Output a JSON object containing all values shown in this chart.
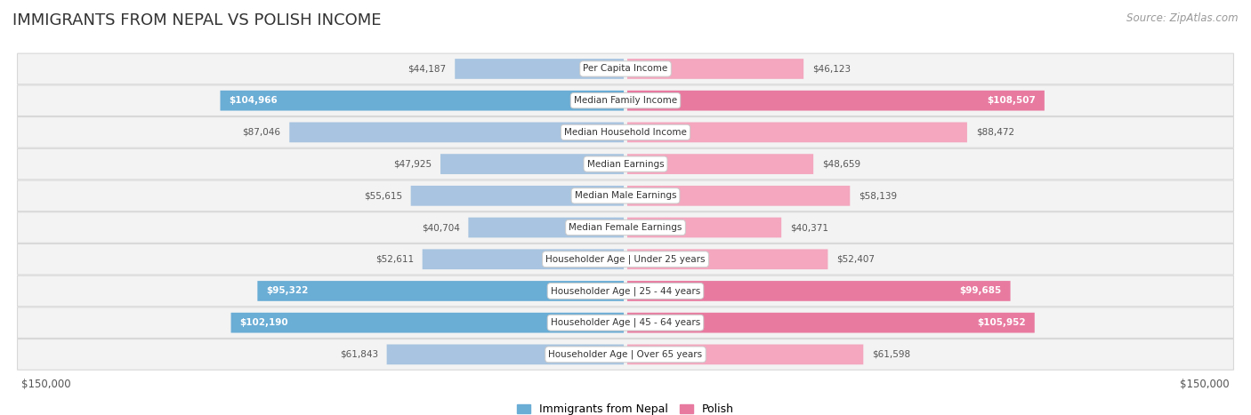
{
  "title": "IMMIGRANTS FROM NEPAL VS POLISH INCOME",
  "source": "Source: ZipAtlas.com",
  "categories": [
    "Per Capita Income",
    "Median Family Income",
    "Median Household Income",
    "Median Earnings",
    "Median Male Earnings",
    "Median Female Earnings",
    "Householder Age | Under 25 years",
    "Householder Age | 25 - 44 years",
    "Householder Age | 45 - 64 years",
    "Householder Age | Over 65 years"
  ],
  "nepal_values": [
    44187,
    104966,
    87046,
    47925,
    55615,
    40704,
    52611,
    95322,
    102190,
    61843
  ],
  "polish_values": [
    46123,
    108507,
    88472,
    48659,
    58139,
    40371,
    52407,
    99685,
    105952,
    61598
  ],
  "nepal_labels": [
    "$44,187",
    "$104,966",
    "$87,046",
    "$47,925",
    "$55,615",
    "$40,704",
    "$52,611",
    "$95,322",
    "$102,190",
    "$61,843"
  ],
  "polish_labels": [
    "$46,123",
    "$108,507",
    "$88,472",
    "$48,659",
    "$58,139",
    "$40,371",
    "$52,407",
    "$99,685",
    "$105,952",
    "$61,598"
  ],
  "nepal_color_light": "#a8c4e0",
  "nepal_color_dark": "#6aadd5",
  "polish_color_light": "#f4a7bf",
  "polish_color_dark": "#e87aa0",
  "max_value": 150000,
  "bar_height": 0.62,
  "row_facecolor": "#f3f3f3",
  "row_edgecolor": "#d8d8d8",
  "background_color": "#ffffff",
  "nepal_inside_indices": [
    1,
    7,
    8
  ],
  "polish_inside_indices": [
    1,
    7,
    8
  ],
  "legend_label_nepal": "Immigrants from Nepal",
  "legend_label_polish": "Polish"
}
